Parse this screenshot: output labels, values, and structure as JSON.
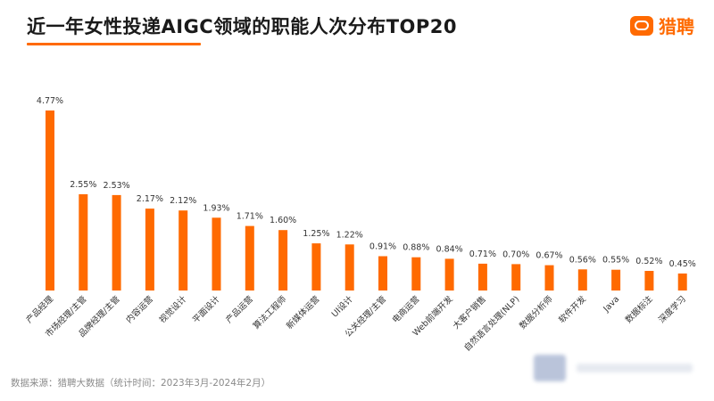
{
  "header": {
    "title": "近一年女性投递AIGC领域的职能人次分布TOP20",
    "logo_text": "猎聘"
  },
  "footer": {
    "source": "数据来源：猎聘大数据（统计时间：2023年3月-2024年2月）"
  },
  "colors": {
    "bar": "#FF6A00",
    "accent": "#FF6A00",
    "title": "#1A1A1A"
  },
  "chart_data": {
    "type": "bar",
    "categories": [
      "产品经理",
      "市场经理/主管",
      "品牌经理/主管",
      "内容运营",
      "视觉设计",
      "平面设计",
      "产品运营",
      "算法工程师",
      "新媒体运营",
      "UI设计",
      "公关经理/主管",
      "电商运营",
      "Web前端开发",
      "大客户销售",
      "自然语言处理(NLP)",
      "数据分析师",
      "软件开发",
      "Java",
      "数据标注",
      "深度学习"
    ],
    "values": [
      4.77,
      2.55,
      2.53,
      2.17,
      2.12,
      1.93,
      1.71,
      1.6,
      1.25,
      1.22,
      0.91,
      0.88,
      0.84,
      0.71,
      0.7,
      0.67,
      0.56,
      0.55,
      0.52,
      0.45
    ],
    "value_labels": [
      "4.77%",
      "2.55%",
      "2.53%",
      "2.17%",
      "2.12%",
      "1.93%",
      "1.71%",
      "1.60%",
      "1.25%",
      "1.22%",
      "0.91%",
      "0.88%",
      "0.84%",
      "0.71%",
      "0.70%",
      "0.67%",
      "0.56%",
      "0.55%",
      "0.52%",
      "0.45%"
    ],
    "unit": "%",
    "ylim": [
      0,
      5.2
    ],
    "grid": false,
    "legend": "none"
  }
}
